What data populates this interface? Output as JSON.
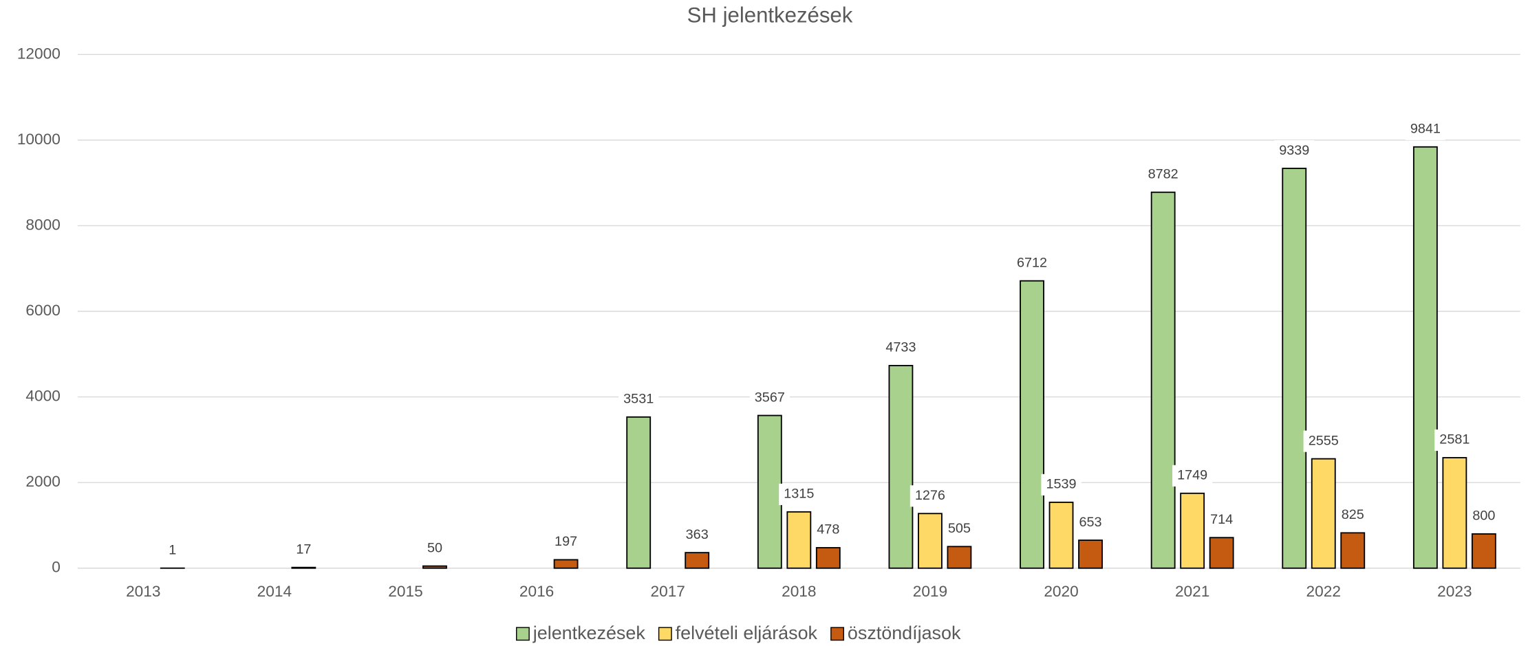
{
  "chart_data": {
    "type": "bar",
    "title": "SH jelentkezések",
    "categories": [
      "2013",
      "2014",
      "2015",
      "2016",
      "2017",
      "2018",
      "2019",
      "2020",
      "2021",
      "2022",
      "2023"
    ],
    "series": [
      {
        "name": "jelentkezések",
        "color": "#a9d18e",
        "values": [
          null,
          null,
          null,
          null,
          3531,
          3567,
          4733,
          6712,
          8782,
          9339,
          9841
        ]
      },
      {
        "name": "felvételi eljárások",
        "color": "#ffd966",
        "values": [
          null,
          null,
          null,
          null,
          null,
          1315,
          1276,
          1539,
          1749,
          2555,
          2581
        ]
      },
      {
        "name": "ösztöndíjasok",
        "color": "#c55a11",
        "values": [
          1,
          17,
          50,
          197,
          363,
          478,
          505,
          653,
          714,
          825,
          800
        ]
      }
    ],
    "ylim": [
      0,
      12000
    ],
    "yticks": [
      0,
      2000,
      4000,
      6000,
      8000,
      10000,
      12000
    ],
    "grid": true,
    "legend": "bottom"
  }
}
